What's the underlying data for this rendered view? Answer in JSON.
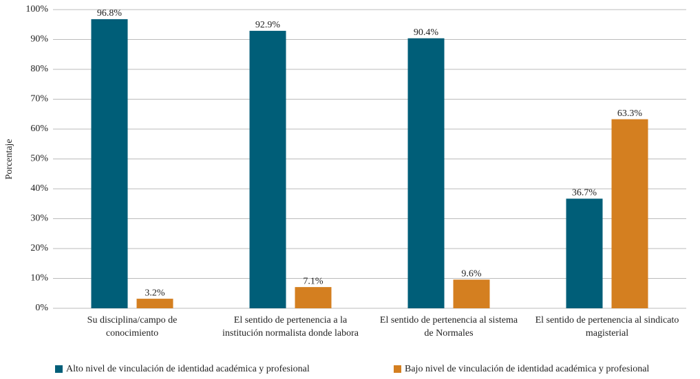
{
  "chart_data": {
    "type": "bar",
    "y_label": "Porcentaje",
    "categories": [
      "Su disciplina/campo de conocimiento",
      "El sentido de pertenencia a la institución normalista donde labora",
      "El sentido de pertenencia al sistema de Normales",
      "El sentido de pertenencia al sindicato magisterial"
    ],
    "series": [
      {
        "name": "Alto nivel de vinculación de identidad académica y profesional",
        "color": "#005e78",
        "values": [
          96.8,
          92.9,
          90.4,
          36.7
        ],
        "value_labels": [
          "96.8%",
          "92.9%",
          "90.4%",
          "36.7%"
        ]
      },
      {
        "name": "Bajo nivel de vinculación de identidad académica y profesional",
        "color": "#d47f20",
        "values": [
          3.2,
          7.1,
          9.6,
          63.3
        ],
        "value_labels": [
          "3.2%",
          "7.1%",
          "9.6%",
          "63.3%"
        ]
      }
    ],
    "ylim": [
      0,
      100
    ],
    "yticks": [
      {
        "value": 0,
        "label": "0%"
      },
      {
        "value": 10,
        "label": "10%"
      },
      {
        "value": 20,
        "label": "20%"
      },
      {
        "value": 30,
        "label": "30%"
      },
      {
        "value": 40,
        "label": "40%"
      },
      {
        "value": 50,
        "label": "50%"
      },
      {
        "value": 60,
        "label": "60%"
      },
      {
        "value": 70,
        "label": "70%"
      },
      {
        "value": 80,
        "label": "80%"
      },
      {
        "value": 90,
        "label": "90%"
      },
      {
        "value": 100,
        "label": "100%"
      }
    ],
    "grid": true,
    "legend": "bottom"
  }
}
